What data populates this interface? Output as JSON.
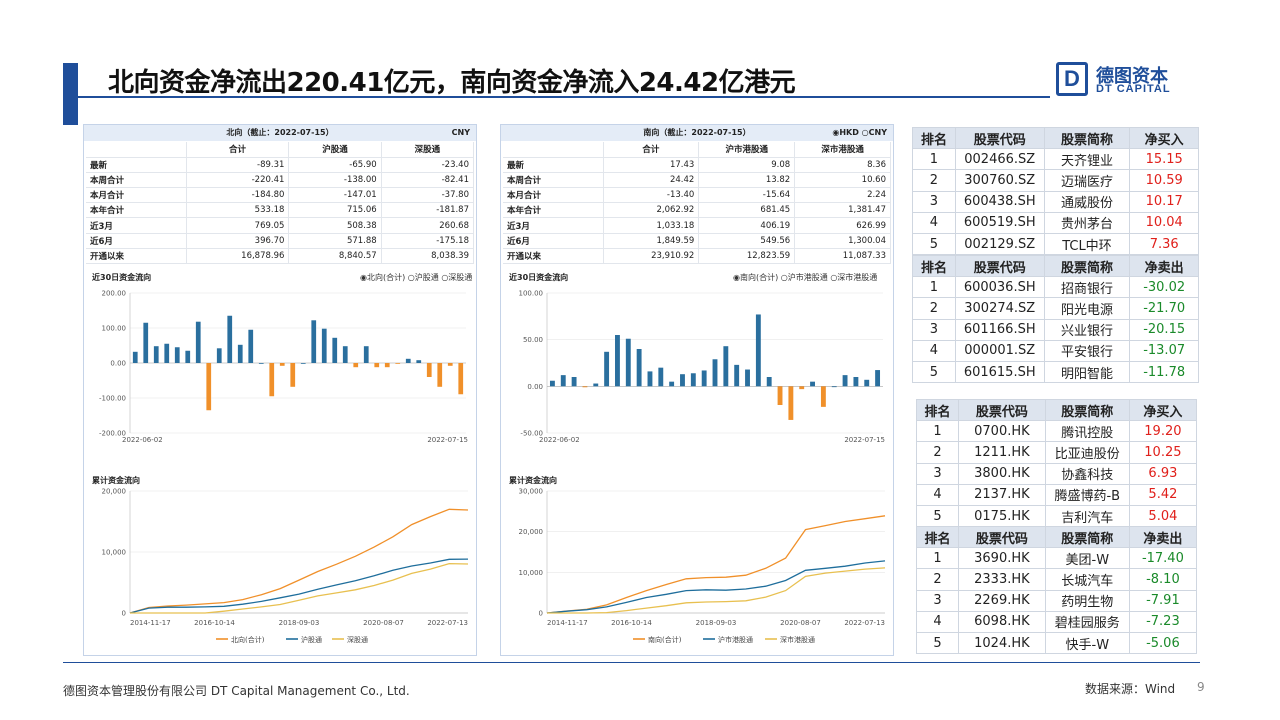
{
  "title": "北向资金净流出220.41亿元，南向资金净流入24.42亿港元",
  "logo": {
    "mark": "D",
    "cn": "德图资本",
    "en": "DT CAPITAL"
  },
  "north": {
    "header": "北向（截止：2022-07-15）",
    "currency": "CNY",
    "columns": [
      "合计",
      "沪股通",
      "深股通"
    ],
    "rows": [
      {
        "label": "最新",
        "values": [
          "-89.31",
          "-65.90",
          "-23.40"
        ]
      },
      {
        "label": "本周合计",
        "values": [
          "-220.41",
          "-138.00",
          "-82.41"
        ]
      },
      {
        "label": "本月合计",
        "values": [
          "-184.80",
          "-147.01",
          "-37.80"
        ]
      },
      {
        "label": "本年合计",
        "values": [
          "533.18",
          "715.06",
          "-181.87"
        ]
      },
      {
        "label": "近3月",
        "values": [
          "769.05",
          "508.38",
          "260.68"
        ]
      },
      {
        "label": "近6月",
        "values": [
          "396.70",
          "571.88",
          "-175.18"
        ]
      },
      {
        "label": "开通以来",
        "values": [
          "16,878.96",
          "8,840.57",
          "8,038.39"
        ]
      }
    ],
    "flow30_title": "近30日资金流向",
    "flow30_options": [
      "◉北向(合计)",
      "○沪股通",
      "○深股通"
    ],
    "cum_title": "累计资金流向"
  },
  "south": {
    "header": "南向（截止：2022-07-15）",
    "currency_options": "◉HKD ○CNY",
    "columns": [
      "合计",
      "沪市港股通",
      "深市港股通"
    ],
    "rows": [
      {
        "label": "最新",
        "values": [
          "17.43",
          "9.08",
          "8.36"
        ]
      },
      {
        "label": "本周合计",
        "values": [
          "24.42",
          "13.82",
          "10.60"
        ]
      },
      {
        "label": "本月合计",
        "values": [
          "-13.40",
          "-15.64",
          "2.24"
        ]
      },
      {
        "label": "本年合计",
        "values": [
          "2,062.92",
          "681.45",
          "1,381.47"
        ]
      },
      {
        "label": "近3月",
        "values": [
          "1,033.18",
          "406.19",
          "626.99"
        ]
      },
      {
        "label": "近6月",
        "values": [
          "1,849.59",
          "549.56",
          "1,300.04"
        ]
      },
      {
        "label": "开通以来",
        "values": [
          "23,910.92",
          "12,823.59",
          "11,087.33"
        ]
      }
    ],
    "flow30_title": "近30日资金流向",
    "flow30_options": [
      "◉南向(合计)",
      "○沪市港股通",
      "○深市港股通"
    ],
    "cum_title": "累计资金流向"
  },
  "rank_tables": [
    {
      "header": [
        "排名",
        "股票代码",
        "股票简称",
        "净买入"
      ],
      "tone": "red",
      "rows": [
        [
          "1",
          "002466.SZ",
          "天齐锂业",
          "15.15"
        ],
        [
          "2",
          "300760.SZ",
          "迈瑞医疗",
          "10.59"
        ],
        [
          "3",
          "600438.SH",
          "通威股份",
          "10.17"
        ],
        [
          "4",
          "600519.SH",
          "贵州茅台",
          "10.04"
        ],
        [
          "5",
          "002129.SZ",
          "TCL中环",
          "7.36"
        ]
      ]
    },
    {
      "header": [
        "排名",
        "股票代码",
        "股票简称",
        "净卖出"
      ],
      "tone": "green",
      "rows": [
        [
          "1",
          "600036.SH",
          "招商银行",
          "-30.02"
        ],
        [
          "2",
          "300274.SZ",
          "阳光电源",
          "-21.70"
        ],
        [
          "3",
          "601166.SH",
          "兴业银行",
          "-20.15"
        ],
        [
          "4",
          "000001.SZ",
          "平安银行",
          "-13.07"
        ],
        [
          "5",
          "601615.SH",
          "明阳智能",
          "-11.78"
        ]
      ]
    },
    {
      "header": [
        "排名",
        "股票代码",
        "股票简称",
        "净买入"
      ],
      "tone": "red",
      "rows": [
        [
          "1",
          "0700.HK",
          "腾讯控股",
          "19.20"
        ],
        [
          "2",
          "1211.HK",
          "比亚迪股份",
          "10.25"
        ],
        [
          "3",
          "3800.HK",
          "协鑫科技",
          "6.93"
        ],
        [
          "4",
          "2137.HK",
          "腾盛博药-B",
          "5.42"
        ],
        [
          "5",
          "0175.HK",
          "吉利汽车",
          "5.04"
        ]
      ]
    },
    {
      "header": [
        "排名",
        "股票代码",
        "股票简称",
        "净卖出"
      ],
      "tone": "green",
      "rows": [
        [
          "1",
          "3690.HK",
          "美团-W",
          "-17.40"
        ],
        [
          "2",
          "2333.HK",
          "长城汽车",
          "-8.10"
        ],
        [
          "3",
          "2269.HK",
          "药明生物",
          "-7.91"
        ],
        [
          "4",
          "6098.HK",
          "碧桂园服务",
          "-7.23"
        ],
        [
          "5",
          "1024.HK",
          "快手-W",
          "-5.06"
        ]
      ]
    }
  ],
  "footer": {
    "left": "德图资本管理股份有限公司  DT Capital Management Co., Ltd.",
    "source": "数据来源：Wind",
    "page": "9"
  },
  "colors": {
    "brand": "#1f4e9a",
    "bar_pos": "#2a6f9e",
    "bar_neg": "#f0902a",
    "line_total": "#f0902a",
    "line_sh": "#1f6e9c",
    "line_sz": "#e8c050"
  },
  "chart_data": [
    {
      "type": "bar",
      "title": "北向 近30日资金流向",
      "series_name": "北向(合计)",
      "x_start": "2022-06-02",
      "x_end": "2022-07-15",
      "ylim": [
        -200,
        200
      ],
      "yticks": [
        "200.00",
        "100.00",
        "0.00",
        "-100.00",
        "-200.00"
      ],
      "values": [
        32,
        115,
        48,
        55,
        45,
        35,
        118,
        -135,
        42,
        135,
        52,
        95,
        0,
        -95,
        -8,
        -68,
        0,
        122,
        98,
        72,
        48,
        -12,
        48,
        -12,
        -12,
        -2,
        12,
        8,
        -40,
        -68,
        -8,
        -89.31
      ]
    },
    {
      "type": "bar",
      "title": "南向 近30日资金流向",
      "series_name": "南向(合计)",
      "x_start": "2022-06-02",
      "x_end": "2022-07-15",
      "ylim": [
        -50,
        100
      ],
      "yticks": [
        "100.00",
        "50.00",
        "0.00",
        "-50.00"
      ],
      "values": [
        6,
        12,
        10,
        -1,
        3,
        37,
        55,
        51,
        40,
        16,
        20,
        5,
        13,
        14,
        17,
        29,
        43,
        23,
        18,
        77,
        10,
        -20,
        -36,
        -3,
        5,
        -22,
        0,
        12,
        10,
        7,
        17.43
      ]
    },
    {
      "type": "line",
      "title": "北向 累计资金流向",
      "x_ticks": [
        "2014-11-17",
        "2016-10-14",
        "2018-09-03",
        "2020-08-07",
        "2022-07-13"
      ],
      "yticks": [
        "20,000",
        "10,000",
        "0"
      ],
      "ylim": [
        0,
        20000
      ],
      "series": [
        {
          "name": "北向(合计)",
          "values": [
            0,
            900,
            1150,
            1300,
            1500,
            1700,
            2200,
            3000,
            4000,
            5400,
            6800,
            8000,
            9300,
            10800,
            12500,
            14500,
            15800,
            17000,
            16878.96
          ]
        },
        {
          "name": "沪股通",
          "values": [
            0,
            800,
            950,
            950,
            1000,
            1100,
            1450,
            1900,
            2500,
            3100,
            3900,
            4600,
            5300,
            6100,
            7000,
            7700,
            8200,
            8800,
            8840.57
          ]
        },
        {
          "name": "深股通",
          "values": [
            0,
            0,
            0,
            0,
            0,
            300,
            650,
            1000,
            1400,
            2100,
            2800,
            3300,
            3800,
            4500,
            5400,
            6500,
            7200,
            8100,
            8038.39
          ]
        }
      ]
    },
    {
      "type": "line",
      "title": "南向 累计资金流向",
      "x_ticks": [
        "2014-11-17",
        "2016-10-14",
        "2018-09-03",
        "2020-08-07",
        "2022-07-13"
      ],
      "yticks": [
        "30,000",
        "20,000",
        "10,000",
        "0"
      ],
      "ylim": [
        0,
        30000
      ],
      "series": [
        {
          "name": "南向(合计)",
          "values": [
            0,
            500,
            900,
            2000,
            3800,
            5500,
            7000,
            8400,
            8700,
            8800,
            9300,
            11000,
            13500,
            20500,
            21500,
            22500,
            23200,
            23910.92
          ]
        },
        {
          "name": "沪市港股通",
          "values": [
            0,
            450,
            800,
            1500,
            2600,
            3800,
            4600,
            5500,
            5700,
            5600,
            5900,
            6600,
            8000,
            10500,
            11000,
            11500,
            12300,
            12823.59
          ]
        },
        {
          "name": "深市港股通",
          "values": [
            0,
            0,
            0,
            100,
            600,
            1200,
            1800,
            2500,
            2700,
            2800,
            3000,
            3900,
            5500,
            9000,
            9800,
            10300,
            10800,
            11087.33
          ]
        }
      ]
    }
  ]
}
